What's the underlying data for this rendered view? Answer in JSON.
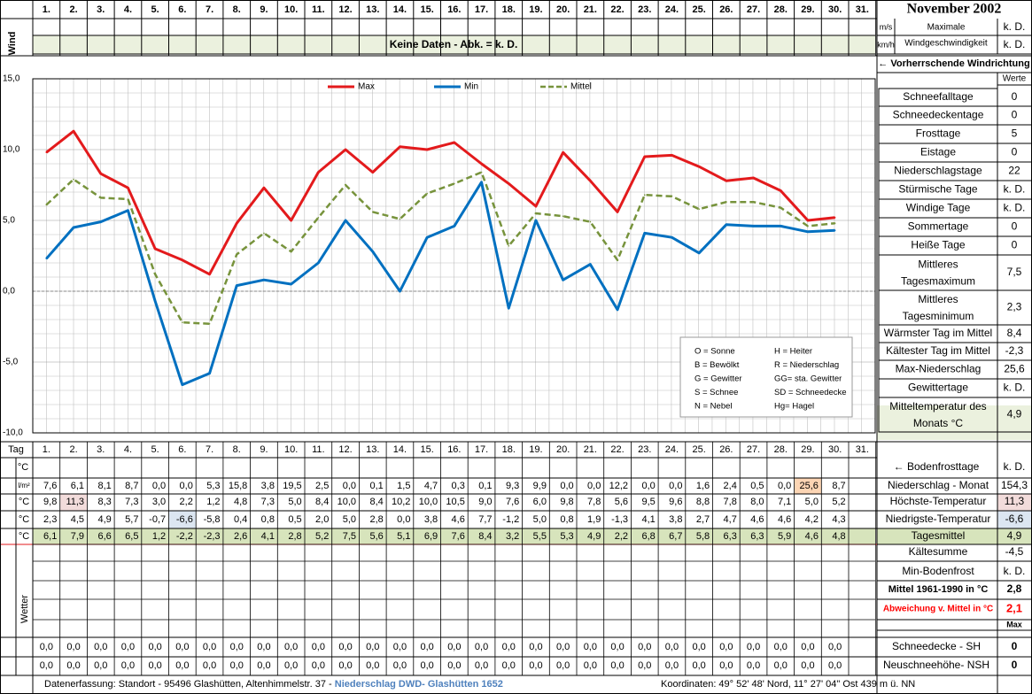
{
  "header": {
    "title": "November 2002",
    "days": [
      "1.",
      "2.",
      "3.",
      "4.",
      "5.",
      "6.",
      "7.",
      "8.",
      "9.",
      "10.",
      "11.",
      "12.",
      "13.",
      "14.",
      "15.",
      "16.",
      "17.",
      "18.",
      "19.",
      "20.",
      "21.",
      "22.",
      "23.",
      "24.",
      "25.",
      "26.",
      "27.",
      "28.",
      "29.",
      "30.",
      "31."
    ]
  },
  "wind": {
    "label": "Wind",
    "no_data_text": "Keine Daten - Abk. = k. D.",
    "unit_ms": "m/s",
    "unit_kmh": "km/h",
    "max_label_1": "Maximale",
    "max_label_2": "Windgeschwindigkeit",
    "max_ms_value": "k. D.",
    "max_kmh_value": "k. D.",
    "direction_label": "← Vorherrschende Windrichtung"
  },
  "chart_data": {
    "type": "line",
    "x": [
      1,
      2,
      3,
      4,
      5,
      6,
      7,
      8,
      9,
      10,
      11,
      12,
      13,
      14,
      15,
      16,
      17,
      18,
      19,
      20,
      21,
      22,
      23,
      24,
      25,
      26,
      27,
      28,
      29,
      30
    ],
    "ylim": [
      -10,
      15
    ],
    "yticks": [
      "15,0",
      "10,0",
      "5,0",
      "0,0",
      "-5,0",
      "-10,0"
    ],
    "xlabel": "Tag",
    "ylabel": "°C",
    "series": [
      {
        "name": "Max",
        "color": "#e31a1c",
        "dash": false,
        "values": [
          9.8,
          11.3,
          8.3,
          7.3,
          3.0,
          2.2,
          1.2,
          4.8,
          7.3,
          5.0,
          8.4,
          10.0,
          8.4,
          10.2,
          10.0,
          10.5,
          9.0,
          7.6,
          6.0,
          9.8,
          7.8,
          5.6,
          9.5,
          9.6,
          8.8,
          7.8,
          8.0,
          7.1,
          5.0,
          5.2
        ]
      },
      {
        "name": "Min",
        "color": "#0070c0",
        "dash": false,
        "values": [
          2.3,
          4.5,
          4.9,
          5.7,
          -0.7,
          -6.6,
          -5.8,
          0.4,
          0.8,
          0.5,
          2.0,
          5.0,
          2.8,
          0.0,
          3.8,
          4.6,
          7.7,
          -1.2,
          5.0,
          0.8,
          1.9,
          -1.3,
          4.1,
          3.8,
          2.7,
          4.7,
          4.6,
          4.6,
          4.2,
          4.3
        ]
      },
      {
        "name": "Mittel",
        "color": "#77933c",
        "dash": true,
        "values": [
          6.1,
          7.9,
          6.6,
          6.5,
          1.2,
          -2.2,
          -2.3,
          2.6,
          4.1,
          2.8,
          5.2,
          7.5,
          5.6,
          5.1,
          6.9,
          7.6,
          8.4,
          3.2,
          5.5,
          5.3,
          4.9,
          2.2,
          6.8,
          6.7,
          5.8,
          6.3,
          6.3,
          5.9,
          4.6,
          4.8
        ]
      }
    ],
    "legend": [
      "Max",
      "Min",
      "Mittel"
    ]
  },
  "key": {
    "left": [
      "O = Sonne",
      "B = Bewölkt",
      "G = Gewitter",
      "S = Schnee",
      "N = Nebel"
    ],
    "right": [
      "H = Heiter",
      "R = Niederschlag",
      "GG= sta. Gewitter",
      "SD = Schneedecke",
      "Hg= Hagel"
    ]
  },
  "stats": {
    "werte_label": "Werte",
    "rows": [
      {
        "label": "Schneefalltage",
        "value": "0"
      },
      {
        "label": "Schneedeckentage",
        "value": "0"
      },
      {
        "label": "Frosttage",
        "value": "5"
      },
      {
        "label": "Eistage",
        "value": "0"
      },
      {
        "label": "Niederschlagstage",
        "value": "22"
      },
      {
        "label": "Stürmische Tage",
        "value": "k. D."
      },
      {
        "label": "Windige Tage",
        "value": "k. D."
      },
      {
        "label": "Sommertage",
        "value": "0"
      },
      {
        "label": "Heiße Tage",
        "value": "0"
      },
      {
        "label": "Mittleres",
        "label2": "Tagesmaximum",
        "value": "7,5"
      },
      {
        "label": "Mittleres",
        "label2": "Tagesminimum",
        "value": "2,3"
      },
      {
        "label": "Wärmster Tag im Mittel",
        "value": "8,4"
      },
      {
        "label": "Kältester Tag im Mittel",
        "value": "-2,3"
      },
      {
        "label": "Max-Niederschlag",
        "value": "25,6"
      },
      {
        "label": "Gewittertage",
        "value": "k. D."
      },
      {
        "label": "Mitteltemperatur des",
        "label2": "Monats °C",
        "value": "4,9"
      }
    ]
  },
  "table": {
    "tag_label": "Tag",
    "unit_c": "°C",
    "unit_lm2": "l/m²",
    "precip": [
      "7,6",
      "6,1",
      "8,1",
      "8,7",
      "0,0",
      "0,0",
      "5,3",
      "15,8",
      "3,8",
      "19,5",
      "2,5",
      "0,0",
      "0,1",
      "1,5",
      "4,7",
      "0,3",
      "0,1",
      "9,3",
      "9,9",
      "0,0",
      "0,0",
      "12,2",
      "0,0",
      "0,0",
      "1,6",
      "2,4",
      "0,5",
      "0,0",
      "25,6",
      "8,7",
      ""
    ],
    "tmax": [
      "9,8",
      "11,3",
      "8,3",
      "7,3",
      "3,0",
      "2,2",
      "1,2",
      "4,8",
      "7,3",
      "5,0",
      "8,4",
      "10,0",
      "8,4",
      "10,2",
      "10,0",
      "10,5",
      "9,0",
      "7,6",
      "6,0",
      "9,8",
      "7,8",
      "5,6",
      "9,5",
      "9,6",
      "8,8",
      "7,8",
      "8,0",
      "7,1",
      "5,0",
      "5,2",
      ""
    ],
    "tmin": [
      "2,3",
      "4,5",
      "4,9",
      "5,7",
      "-0,7",
      "-6,6",
      "-5,8",
      "0,4",
      "0,8",
      "0,5",
      "2,0",
      "5,0",
      "2,8",
      "0,0",
      "3,8",
      "4,6",
      "7,7",
      "-1,2",
      "5,0",
      "0,8",
      "1,9",
      "-1,3",
      "4,1",
      "3,8",
      "2,7",
      "4,7",
      "4,6",
      "4,6",
      "4,2",
      "4,3",
      ""
    ],
    "tmean": [
      "6,1",
      "7,9",
      "6,6",
      "6,5",
      "1,2",
      "-2,2",
      "-2,3",
      "2,6",
      "4,1",
      "2,8",
      "5,2",
      "7,5",
      "5,6",
      "5,1",
      "6,9",
      "7,6",
      "8,4",
      "3,2",
      "5,5",
      "5,3",
      "4,9",
      "2,2",
      "6,8",
      "6,7",
      "5,8",
      "6,3",
      "6,3",
      "5,9",
      "4,6",
      "4,8",
      ""
    ],
    "snow_sh": [
      "0,0",
      "0,0",
      "0,0",
      "0,0",
      "0,0",
      "0,0",
      "0,0",
      "0,0",
      "0,0",
      "0,0",
      "0,0",
      "0,0",
      "0,0",
      "0,0",
      "0,0",
      "0,0",
      "0,0",
      "0,0",
      "0,0",
      "0,0",
      "0,0",
      "0,0",
      "0,0",
      "0,0",
      "0,0",
      "0,0",
      "0,0",
      "0,0",
      "0,0",
      "0,0",
      ""
    ],
    "snow_nsh": [
      "0,0",
      "0,0",
      "0,0",
      "0,0",
      "0,0",
      "0,0",
      "0,0",
      "0,0",
      "0,0",
      "0,0",
      "0,0",
      "0,0",
      "0,0",
      "0,0",
      "0,0",
      "0,0",
      "0,0",
      "0,0",
      "0,0",
      "0,0",
      "0,0",
      "0,0",
      "0,0",
      "0,0",
      "0,0",
      "0,0",
      "0,0",
      "0,0",
      "0,0",
      "0,0",
      ""
    ],
    "wetter_label": "Wetter"
  },
  "summary": {
    "bodenfrost_label": "← Bodenfrosttage",
    "bodenfrost_value": "k. D.",
    "rows": [
      {
        "label": "Niederschlag - Monat",
        "value": "154,3"
      },
      {
        "label": "Höchste-Temperatur",
        "value": "11,3"
      },
      {
        "label": "Niedrigste-Temperatur",
        "value": "-6,6"
      },
      {
        "label": "Tagesmittel",
        "value": "4,9"
      },
      {
        "label": "Kältesumme",
        "value": "-4,5"
      },
      {
        "label": "Min-Bodenfrost",
        "value": "k. D."
      },
      {
        "label": "Mittel 1961-1990 in °C",
        "value": "2,8"
      },
      {
        "label": "Abweichung v. Mittel in °C",
        "value": "2,1"
      }
    ],
    "max_label": "Max",
    "snow_sh_label": "Schneedecke -  SH",
    "snow_sh_value": "0",
    "snow_nsh_label": "Neuschneehöhe- NSH",
    "snow_nsh_value": "0"
  },
  "footer": {
    "prefix": "Datenerfassung:  Standort -  95496  Glashütten, Altenhimmelstr. 37 - ",
    "source": "Niederschlag DWD- Glashütten 1652",
    "coords": "Koordinaten:  49° 52' 48' Nord,   11° 27' 04\" Ost   439 m ü. NN"
  },
  "colors": {
    "band_green": "#ebf1de",
    "mean_green": "#d7e4bc",
    "hi_red": "#f2dcdb",
    "lo_blue": "#dce6f1",
    "precip_max": "#fcd5b4",
    "grid": "#c0c0c0",
    "footer_blue": "#4f81bd",
    "dev_red": "#ff0000"
  }
}
